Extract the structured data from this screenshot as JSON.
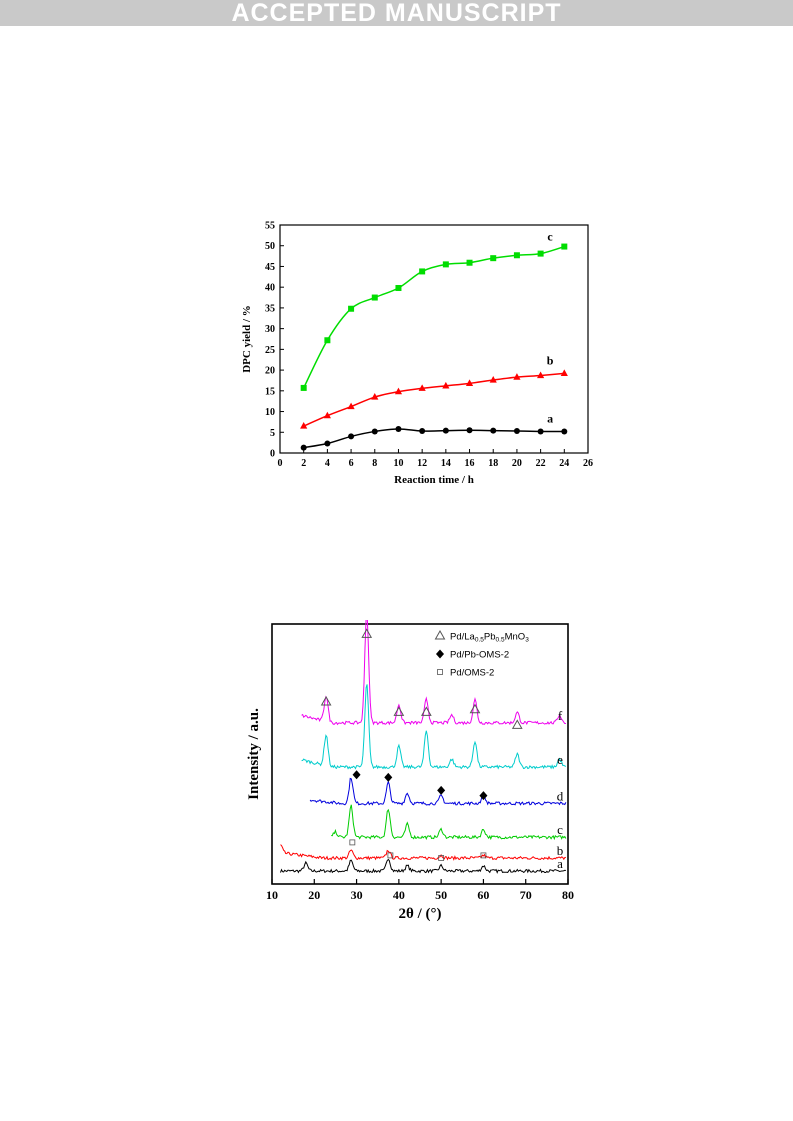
{
  "header": {
    "banner": "ACCEPTED MANUSCRIPT"
  },
  "chart_data": [
    {
      "type": "line",
      "xlabel": "Reaction time / h",
      "ylabel": "DPC yield / %",
      "xlim": [
        0,
        26
      ],
      "ylim": [
        0,
        55
      ],
      "xticks": [
        "0",
        "2",
        "4",
        "6",
        "8",
        "10",
        "12",
        "14",
        "16",
        "18",
        "20",
        "22",
        "24",
        "26"
      ],
      "yticks": [
        "0",
        "5",
        "10",
        "15",
        "20",
        "25",
        "30",
        "35",
        "40",
        "45",
        "50",
        "55"
      ],
      "x": [
        2,
        4,
        6,
        8,
        10,
        12,
        14,
        16,
        18,
        20,
        22,
        24
      ],
      "series": [
        {
          "name": "a",
          "color": "#000000",
          "marker": "circle",
          "values": [
            1.3,
            2.3,
            4.0,
            5.2,
            5.8,
            5.3,
            5.4,
            5.5,
            5.4,
            5.3,
            5.2,
            5.2
          ]
        },
        {
          "name": "b",
          "color": "#ff0000",
          "marker": "triangle",
          "values": [
            6.5,
            9.0,
            11.2,
            13.5,
            14.8,
            15.6,
            16.2,
            16.8,
            17.6,
            18.3,
            18.7,
            19.2
          ]
        },
        {
          "name": "c",
          "color": "#00dd00",
          "marker": "square",
          "values": [
            15.7,
            27.2,
            34.8,
            37.5,
            39.8,
            43.8,
            45.5,
            45.9,
            47.0,
            47.7,
            48.1,
            49.8
          ]
        }
      ]
    },
    {
      "type": "line",
      "xlabel": "2θ / (°)",
      "ylabel": "Intensity / a.u.",
      "xlim": [
        10,
        80
      ],
      "xticks": [
        "10",
        "20",
        "30",
        "40",
        "50",
        "60",
        "70",
        "80"
      ],
      "legend": [
        {
          "symbol": "open-triangle",
          "label_main": "Pd/La",
          "sub1": "0.5",
          "label_mid": "Pb",
          "sub2": "0.5",
          "label_end": "MnO",
          "sub3": "3"
        },
        {
          "symbol": "filled-diamond",
          "label": "Pd/Pb-OMS-2"
        },
        {
          "symbol": "open-square",
          "label": "Pd/OMS-2"
        }
      ],
      "legend_position": "top-right",
      "series": [
        {
          "name": "a",
          "color": "#000000",
          "baseline": 0.05,
          "peaks": [
            [
              18,
              0.03
            ],
            [
              28.7,
              0.04
            ],
            [
              37.5,
              0.05
            ],
            [
              42,
              0.02
            ],
            [
              50,
              0.02
            ],
            [
              60,
              0.02
            ]
          ]
        },
        {
          "name": "b",
          "color": "#ff0000",
          "baseline": 0.1,
          "peaks": [
            [
              12,
              0.03
            ],
            [
              28.7,
              0.03
            ],
            [
              37.5,
              0.03
            ],
            [
              50,
              0.01
            ],
            [
              60,
              0.01
            ]
          ]
        },
        {
          "name": "c",
          "color": "#00cc00",
          "baseline": 0.18,
          "peaks": [
            [
              25,
              0.02
            ],
            [
              28.7,
              0.12
            ],
            [
              37.5,
              0.11
            ],
            [
              42,
              0.05
            ],
            [
              50,
              0.03
            ],
            [
              60,
              0.03
            ]
          ]
        },
        {
          "name": "d",
          "color": "#0000dd",
          "baseline": 0.31,
          "peaks": [
            [
              28.7,
              0.1
            ],
            [
              37.5,
              0.08
            ],
            [
              42,
              0.04
            ],
            [
              50,
              0.03
            ],
            [
              60,
              0.03
            ]
          ]
        },
        {
          "name": "e",
          "color": "#00cccc",
          "baseline": 0.45,
          "peaks": [
            [
              22.8,
              0.12
            ],
            [
              32.4,
              0.32
            ],
            [
              40,
              0.08
            ],
            [
              46.5,
              0.14
            ],
            [
              52.5,
              0.03
            ],
            [
              58,
              0.1
            ],
            [
              68,
              0.05
            ],
            [
              78,
              0.03
            ]
          ]
        },
        {
          "name": "f",
          "color": "#ee00ee",
          "baseline": 0.62,
          "peaks": [
            [
              22.8,
              0.1
            ],
            [
              32.4,
              0.43
            ],
            [
              40,
              0.07
            ],
            [
              46.5,
              0.09
            ],
            [
              52.5,
              0.03
            ],
            [
              58,
              0.09
            ],
            [
              68,
              0.04
            ],
            [
              78,
              0.03
            ]
          ]
        }
      ],
      "markers": [
        {
          "symbol": "open-triangle",
          "x": [
            22.8,
            32.4,
            40,
            46.5,
            58,
            68
          ]
        },
        {
          "symbol": "filled-diamond",
          "x": [
            30,
            37.5,
            50,
            60
          ]
        },
        {
          "symbol": "open-square",
          "x": [
            29,
            38,
            50,
            60
          ]
        }
      ]
    }
  ]
}
